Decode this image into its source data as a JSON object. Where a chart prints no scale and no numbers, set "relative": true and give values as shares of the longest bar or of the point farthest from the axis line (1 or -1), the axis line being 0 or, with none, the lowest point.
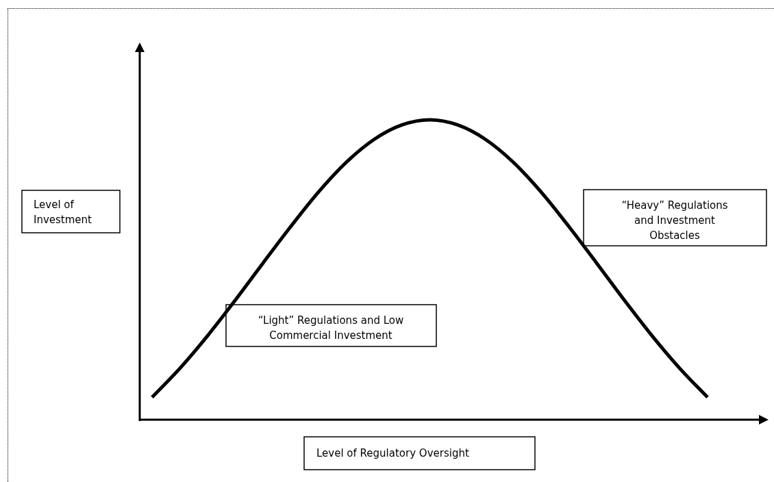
{
  "chart_data": {
    "type": "line",
    "relative": true,
    "xlabel": "Level of Regulatory Oversight",
    "ylabel": "Level of Investment",
    "color": "#000000",
    "categories": [
      null,
      null,
      null,
      null,
      null,
      null,
      null,
      null,
      null,
      null,
      null,
      null,
      null,
      null,
      null,
      null,
      null,
      null,
      null,
      null,
      null
    ],
    "values": [
      0.075,
      0.171,
      0.28,
      0.399,
      0.523,
      0.645,
      0.76,
      0.859,
      0.935,
      0.983,
      1,
      0.983,
      0.935,
      0.859,
      0.76,
      0.645,
      0.523,
      0.399,
      0.28,
      0.171,
      0.075
    ],
    "annotations": [
      "“Light” Regulations and Low Commercial Investment",
      "“Heavy” Regulations and Investment Obstacles"
    ]
  }
}
